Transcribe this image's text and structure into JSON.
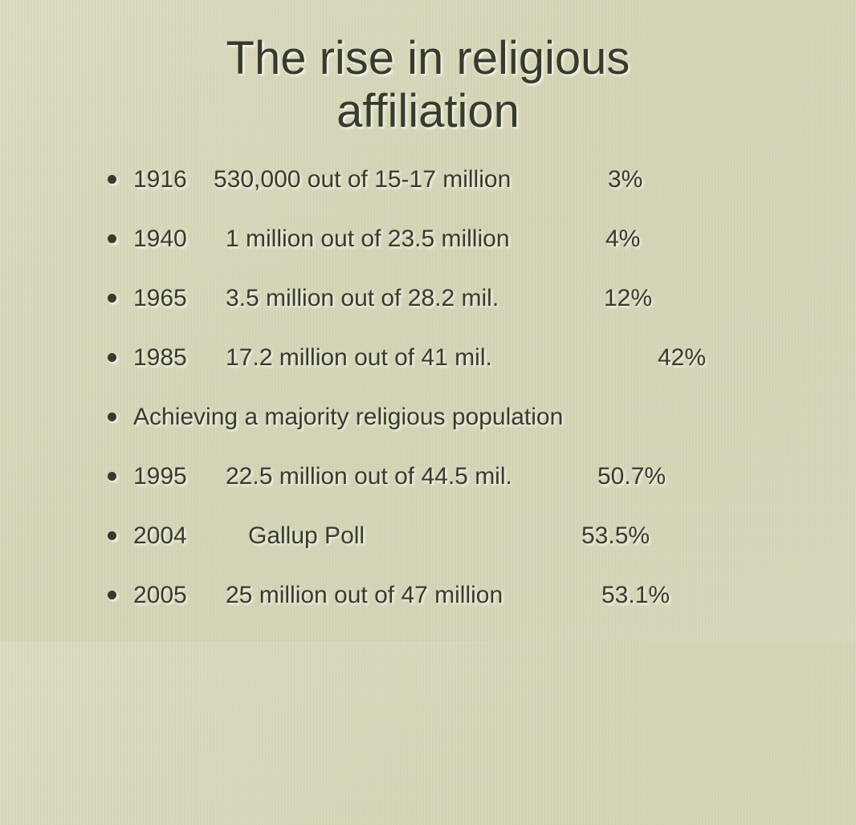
{
  "slide": {
    "title_line1": "The rise in religious",
    "title_line2": "affiliation",
    "items": [
      {
        "year": "1916",
        "detail": "530,000 out of 15-17 million",
        "percent": "3%"
      },
      {
        "year": "1940",
        "detail": "1 million out of 23.5 million",
        "percent": "4%"
      },
      {
        "year": "1965",
        "detail": "3.5 million out of 28.2 mil.",
        "percent": "12%"
      },
      {
        "year": "1985",
        "detail": "17.2 million out of 41 mil.",
        "percent": "42%"
      },
      {
        "text": "Achieving a majority religious population"
      },
      {
        "year": "1995",
        "detail": "22.5 million out of 44.5 mil.",
        "percent": "50.7%"
      },
      {
        "year": "2004",
        "detail": "Gallup Poll",
        "percent": "53.5%"
      },
      {
        "year": "2005",
        "detail": "25 million out of 47 million",
        "percent": "53.1%"
      }
    ]
  },
  "colors": {
    "background": "#d7d6b8",
    "text": "#3a3a2c"
  }
}
